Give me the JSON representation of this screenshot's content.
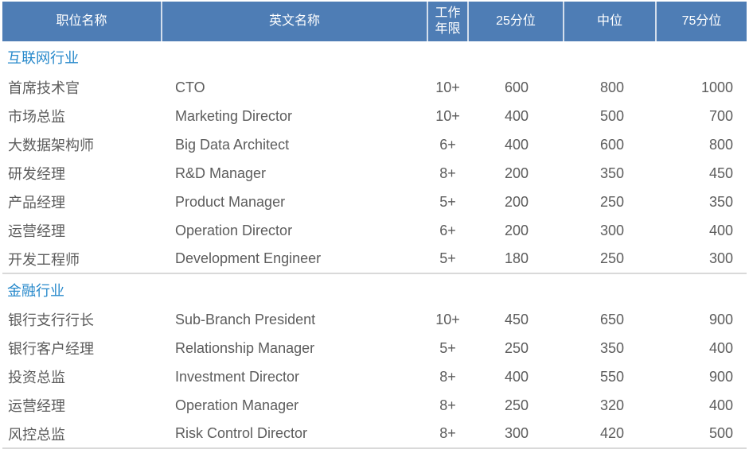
{
  "table": {
    "columns": [
      "职位名称",
      "英文名称",
      "工作年限",
      "25分位",
      "中位",
      "75分位"
    ],
    "sections": [
      {
        "title": "互联网行业",
        "rows": [
          {
            "position_cn": "首席技术官",
            "position_en": "CTO",
            "years": "10+",
            "p25": "600",
            "median": "800",
            "p75": "1000"
          },
          {
            "position_cn": "市场总监",
            "position_en": "Marketing Director",
            "years": "10+",
            "p25": "400",
            "median": "500",
            "p75": "700"
          },
          {
            "position_cn": "大数据架构师",
            "position_en": "Big Data Architect",
            "years": "6+",
            "p25": "400",
            "median": "600",
            "p75": "800"
          },
          {
            "position_cn": "研发经理",
            "position_en": "R&D Manager",
            "years": "8+",
            "p25": "200",
            "median": "350",
            "p75": "450"
          },
          {
            "position_cn": "产品经理",
            "position_en": "Product Manager",
            "years": "5+",
            "p25": "200",
            "median": "250",
            "p75": "350"
          },
          {
            "position_cn": "运营经理",
            "position_en": "Operation Director",
            "years": "6+",
            "p25": "200",
            "median": "300",
            "p75": "400"
          },
          {
            "position_cn": "开发工程师",
            "position_en": "Development Engineer",
            "years": "5+",
            "p25": "180",
            "median": "250",
            "p75": "300"
          }
        ]
      },
      {
        "title": "金融行业",
        "rows": [
          {
            "position_cn": "银行支行行长",
            "position_en": "Sub-Branch President",
            "years": "10+",
            "p25": "450",
            "median": "650",
            "p75": "900"
          },
          {
            "position_cn": "银行客户经理",
            "position_en": "Relationship Manager",
            "years": "5+",
            "p25": "250",
            "median": "350",
            "p75": "400"
          },
          {
            "position_cn": "投资总监",
            "position_en": "Investment Director",
            "years": "8+",
            "p25": "400",
            "median": "550",
            "p75": "900"
          },
          {
            "position_cn": "运营经理",
            "position_en": "Operation Manager",
            "years": "8+",
            "p25": "250",
            "median": "320",
            "p75": "400"
          },
          {
            "position_cn": "风控总监",
            "position_en": "Risk Control Director",
            "years": "8+",
            "p25": "300",
            "median": "420",
            "p75": "500"
          }
        ]
      }
    ]
  },
  "colors": {
    "header_bg": "#4E7DB5",
    "header_text": "#FFFFFF",
    "header_separator": "#D3DEEC",
    "section_title": "#2789CB",
    "body_text": "#5C5C5C",
    "divider": "#D9D9D9",
    "page_bg": "#FFFFFF"
  }
}
